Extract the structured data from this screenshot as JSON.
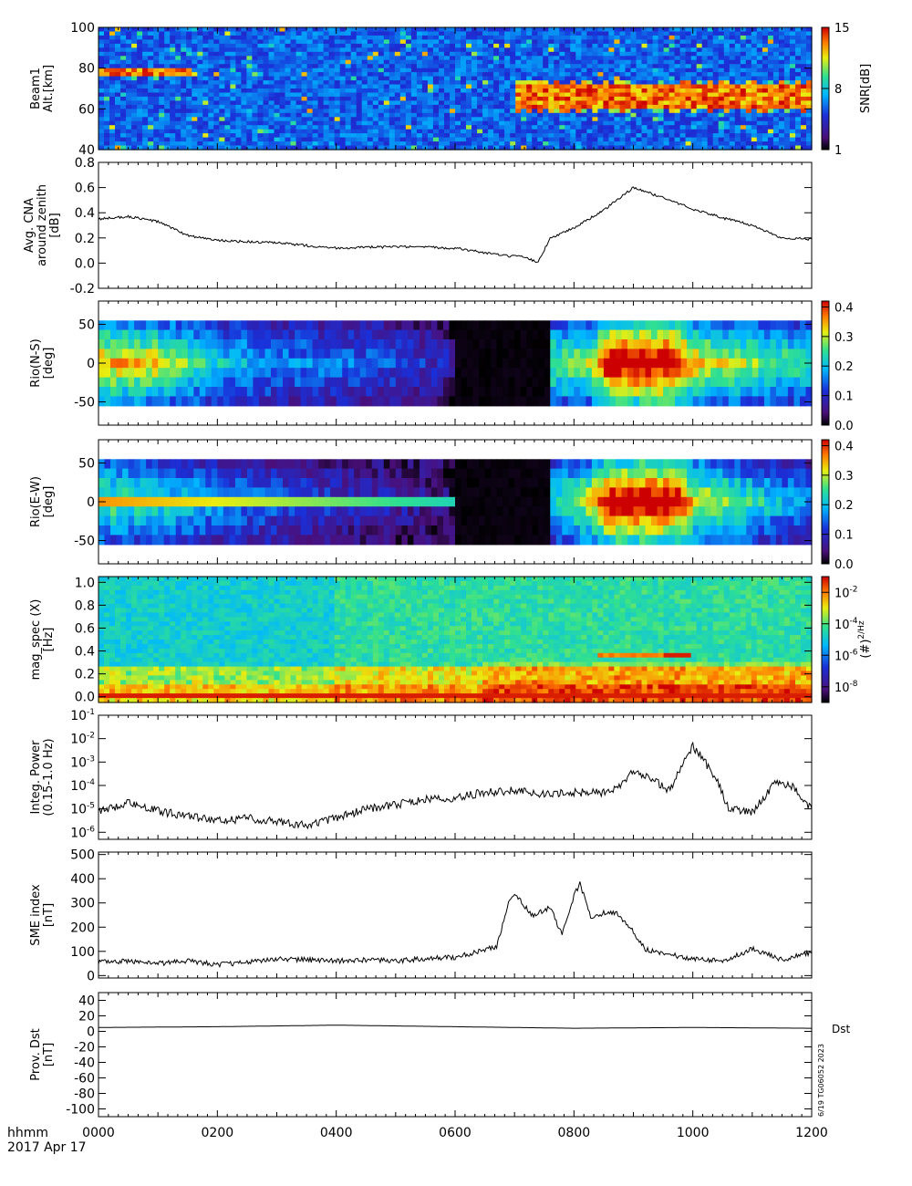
{
  "footer": {
    "time_format_label": "hhmm",
    "date_label": "2017 Apr 17",
    "x_ticks": [
      "0000",
      "0200",
      "0400",
      "0600",
      "0800",
      "1000",
      "1200"
    ],
    "stamp": "6/19 TG06052 2023"
  },
  "colors": {
    "background": "#ffffff",
    "axis": "#000000",
    "trace": "#000000"
  },
  "chart_data": [
    {
      "type": "heatmap",
      "ylabel_lines": [
        "Beam1",
        "Alt.[km]"
      ],
      "ylim": [
        40,
        100
      ],
      "yticks": [
        "40",
        "60",
        "80",
        "100"
      ],
      "colorbar": {
        "label": "SNR[dB]",
        "ticks": [
          "1",
          "8",
          "15"
        ],
        "range": [
          1,
          15
        ]
      },
      "features": [
        {
          "t": [
            0.0,
            1.6
          ],
          "alt": [
            76,
            79
          ],
          "level": "high"
        },
        {
          "t": [
            7.0,
            12.0
          ],
          "alt": [
            60,
            72
          ],
          "level": "high"
        }
      ]
    },
    {
      "type": "line",
      "ylabel_lines": [
        "Avg. CNA",
        "around zenith",
        "[dB]"
      ],
      "ylim": [
        -0.2,
        0.8
      ],
      "yticks": [
        "-0.2",
        "0.0",
        "0.2",
        "0.4",
        "0.6",
        "0.8"
      ],
      "x_hours": [
        0,
        0.5,
        1.0,
        1.5,
        2.0,
        3.0,
        4.0,
        5.0,
        6.0,
        6.8,
        7.1,
        7.4,
        7.6,
        8.0,
        8.5,
        9.0,
        9.5,
        10.0,
        10.5,
        11.0,
        11.5,
        12.0
      ],
      "values": [
        0.35,
        0.37,
        0.33,
        0.22,
        0.18,
        0.16,
        0.12,
        0.13,
        0.12,
        0.06,
        0.05,
        0.01,
        0.2,
        0.28,
        0.42,
        0.6,
        0.52,
        0.43,
        0.36,
        0.3,
        0.2,
        0.19
      ]
    },
    {
      "type": "heatmap",
      "ylabel_lines": [
        "Rio(N-S)",
        "[deg]"
      ],
      "ylim": [
        -80,
        80
      ],
      "yticks": [
        "-50",
        "0",
        "50"
      ],
      "data_range": [
        -55,
        55
      ],
      "colorbar": {
        "ticks": [
          "0.0",
          "0.1",
          "0.2",
          "0.3",
          "0.4"
        ],
        "range": [
          0,
          0.42
        ]
      },
      "rows": 9,
      "time_profile_hours": [
        0,
        1,
        2,
        3,
        4,
        5,
        5.9,
        6.0,
        7.6,
        7.65,
        8.3,
        8.6,
        9.0,
        9.7,
        10.0,
        11.0,
        12.0
      ],
      "time_profile_values": [
        0.32,
        0.3,
        0.2,
        0.16,
        0.14,
        0.12,
        0.08,
        0.01,
        0.01,
        0.25,
        0.28,
        0.42,
        0.42,
        0.42,
        0.32,
        0.26,
        0.22
      ]
    },
    {
      "type": "heatmap",
      "ylabel_lines": [
        "Rio(E-W)",
        "[deg]"
      ],
      "ylim": [
        -80,
        80
      ],
      "yticks": [
        "-50",
        "0",
        "50"
      ],
      "data_range": [
        -55,
        55
      ],
      "colorbar": {
        "ticks": [
          "0.0",
          "0.1",
          "0.2",
          "0.3",
          "0.4"
        ],
        "range": [
          0,
          0.42
        ]
      },
      "rows": 9,
      "time_profile_hours": [
        0,
        1,
        2,
        3,
        4,
        5,
        5.9,
        6.0,
        7.6,
        7.65,
        8.3,
        8.6,
        9.0,
        9.7,
        10.0,
        11.0,
        12.0
      ],
      "time_profile_values": [
        0.25,
        0.22,
        0.17,
        0.13,
        0.1,
        0.08,
        0.05,
        0.01,
        0.01,
        0.2,
        0.3,
        0.42,
        0.42,
        0.42,
        0.3,
        0.22,
        0.15
      ]
    },
    {
      "type": "heatmap",
      "ylabel_lines": [
        "mag_spec (X)",
        "[Hz]"
      ],
      "ylim": [
        -0.05,
        1.05
      ],
      "yticks": [
        "0.0",
        "0.2",
        "0.4",
        "0.6",
        "0.8",
        "1.0"
      ],
      "colorbar": {
        "label": "(#)^2/Hz",
        "ticks": [
          "10^-8",
          "10^-6",
          "10^-4",
          "10^-2"
        ],
        "range_log10": [
          -9,
          -1
        ]
      },
      "features": [
        {
          "t": [
            8.4,
            10.0
          ],
          "freq": [
            0.35,
            0.39
          ],
          "level": "high"
        },
        {
          "t": [
            9.5,
            10.0
          ],
          "freq": [
            0.36,
            0.4
          ],
          "level": "very high"
        },
        {
          "t": [
            0.0,
            12.0
          ],
          "freq": [
            0.0,
            0.02
          ],
          "level": "very high"
        }
      ]
    },
    {
      "type": "line",
      "ylabel_lines": [
        "Integ. Power",
        "(0.15-1.0 Hz)"
      ],
      "yscale": "log",
      "ylim": [
        5e-07,
        0.1
      ],
      "yticks": [
        "10^-6",
        "10^-5",
        "10^-4",
        "10^-3",
        "10^-2",
        "10^-1"
      ],
      "x_hours": [
        0,
        0.5,
        1.0,
        1.5,
        2.0,
        2.5,
        3.0,
        3.5,
        4.0,
        4.5,
        5.0,
        5.5,
        6.0,
        6.5,
        7.0,
        7.5,
        8.0,
        8.5,
        8.8,
        9.0,
        9.3,
        9.6,
        9.8,
        10.0,
        10.2,
        10.4,
        10.6,
        11.0,
        11.4,
        11.7,
        12.0
      ],
      "values": [
        7e-06,
        2e-05,
        8e-06,
        5e-06,
        3e-06,
        4e-06,
        3e-06,
        2e-06,
        4e-06,
        1e-05,
        1.5e-05,
        2.5e-05,
        3e-05,
        5e-05,
        6e-05,
        4e-05,
        5e-05,
        5e-05,
        0.0001,
        0.0004,
        0.0002,
        6e-05,
        0.0005,
        0.005,
        0.001,
        0.0002,
        1e-05,
        7e-06,
        0.00015,
        8e-05,
        1e-05
      ]
    },
    {
      "type": "line",
      "ylabel_lines": [
        "SME index",
        "[nT]"
      ],
      "ylim": [
        -10,
        510
      ],
      "yticks": [
        "0",
        "100",
        "200",
        "300",
        "400",
        "500"
      ],
      "x_hours": [
        0,
        0.5,
        1.0,
        1.5,
        2.0,
        2.5,
        3.0,
        3.5,
        4.0,
        4.5,
        5.0,
        5.5,
        6.0,
        6.4,
        6.7,
        6.9,
        7.0,
        7.3,
        7.6,
        7.8,
        8.0,
        8.1,
        8.3,
        8.5,
        8.7,
        9.0,
        9.2,
        9.5,
        10.0,
        10.5,
        11.0,
        11.5,
        12.0
      ],
      "values": [
        55,
        60,
        50,
        60,
        45,
        55,
        70,
        65,
        60,
        65,
        60,
        70,
        75,
        100,
        120,
        300,
        340,
        250,
        280,
        170,
        330,
        380,
        230,
        260,
        260,
        180,
        110,
        90,
        70,
        60,
        110,
        65,
        95
      ]
    },
    {
      "type": "line",
      "ylabel_lines": [
        "Prov. Dst",
        "[nT]"
      ],
      "ylim": [
        -110,
        50
      ],
      "yticks": [
        "-100",
        "-80",
        "-60",
        "-40",
        "-20",
        "0",
        "20",
        "40"
      ],
      "series_label": "Dst",
      "x_hours": [
        0,
        2,
        4,
        6,
        8,
        10,
        12
      ],
      "values": [
        5,
        6,
        8,
        6,
        4,
        5,
        4
      ]
    }
  ]
}
